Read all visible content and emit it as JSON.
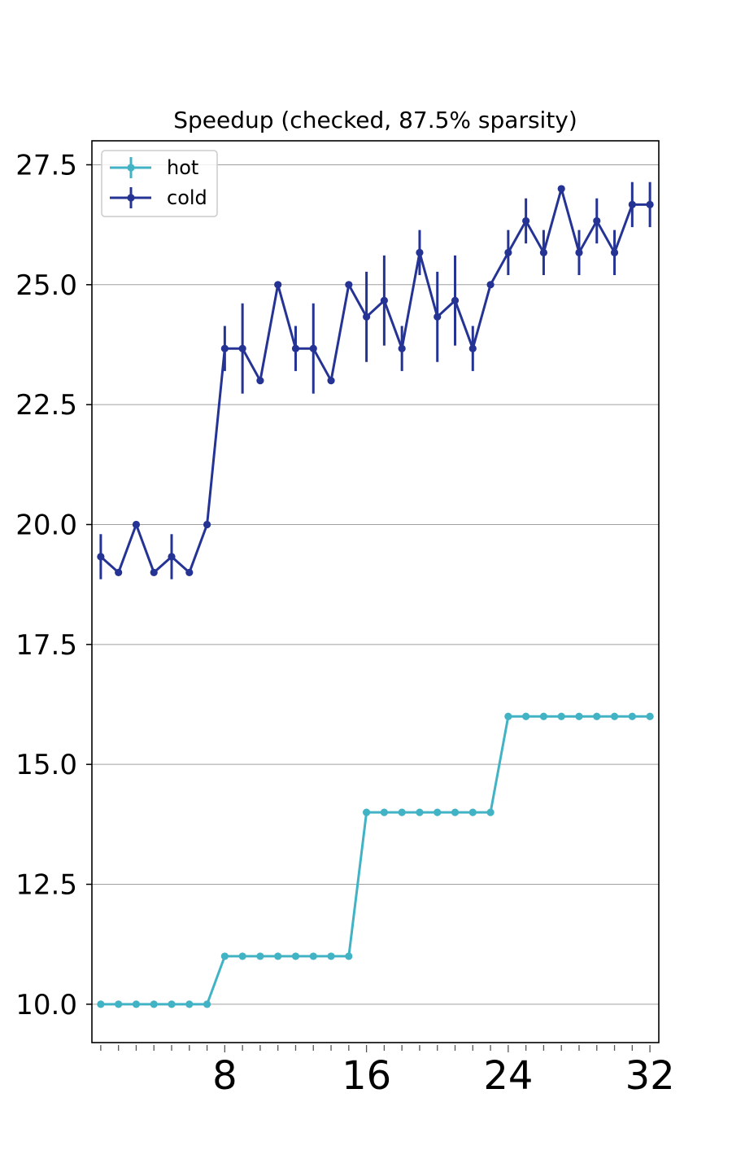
{
  "chart_data": {
    "type": "line",
    "title": "Speedup (checked, 87.5% sparsity)",
    "xlabel": "",
    "ylabel": "",
    "xlim": [
      0.5,
      32.5
    ],
    "ylim": [
      9.2,
      28.0
    ],
    "x_ticks_major": [
      8,
      16,
      24,
      32
    ],
    "x_ticks_minor": [
      1,
      2,
      3,
      4,
      5,
      6,
      7,
      8,
      9,
      10,
      11,
      12,
      13,
      14,
      15,
      16,
      17,
      18,
      19,
      20,
      21,
      22,
      23,
      24,
      25,
      26,
      27,
      28,
      29,
      30,
      31,
      32
    ],
    "y_ticks": [
      10.0,
      12.5,
      15.0,
      17.5,
      20.0,
      22.5,
      25.0,
      27.5
    ],
    "grid": "horizontal",
    "legend_position": "top-left",
    "x": [
      1,
      2,
      3,
      4,
      5,
      6,
      7,
      8,
      9,
      10,
      11,
      12,
      13,
      14,
      15,
      16,
      17,
      18,
      19,
      20,
      21,
      22,
      23,
      24,
      25,
      26,
      27,
      28,
      29,
      30,
      31,
      32
    ],
    "series": [
      {
        "name": "hot",
        "color": "#41b3c4",
        "values": [
          10,
          10,
          10,
          10,
          10,
          10,
          10,
          11,
          11,
          11,
          11,
          11,
          11,
          11,
          11,
          14,
          14,
          14,
          14,
          14,
          14,
          14,
          14,
          16,
          16,
          16,
          16,
          16,
          16,
          16,
          16,
          16
        ],
        "errors": [
          0,
          0,
          0,
          0,
          0,
          0,
          0,
          0,
          0,
          0,
          0,
          0,
          0,
          0,
          0,
          0,
          0,
          0,
          0,
          0,
          0,
          0,
          0,
          0,
          0,
          0,
          0,
          0,
          0,
          0,
          0,
          0
        ]
      },
      {
        "name": "cold",
        "color": "#253494",
        "values": [
          19.33,
          19.0,
          20.0,
          19.0,
          19.33,
          19.0,
          20.0,
          23.67,
          23.67,
          23.0,
          25.0,
          23.67,
          23.67,
          23.0,
          25.0,
          24.33,
          24.67,
          23.67,
          25.67,
          24.33,
          24.67,
          23.67,
          25.0,
          25.67,
          26.33,
          25.67,
          27.0,
          25.67,
          26.33,
          25.67,
          26.67,
          26.67
        ],
        "errors": [
          0.47,
          0,
          0,
          0,
          0.47,
          0,
          0,
          0.47,
          0.94,
          0,
          0,
          0.47,
          0.94,
          0,
          0,
          0.94,
          0.94,
          0.47,
          0.47,
          0.94,
          0.94,
          0.47,
          0,
          0.47,
          0.47,
          0.47,
          0,
          0.47,
          0.47,
          0.47,
          0.47,
          0.47
        ]
      }
    ]
  }
}
